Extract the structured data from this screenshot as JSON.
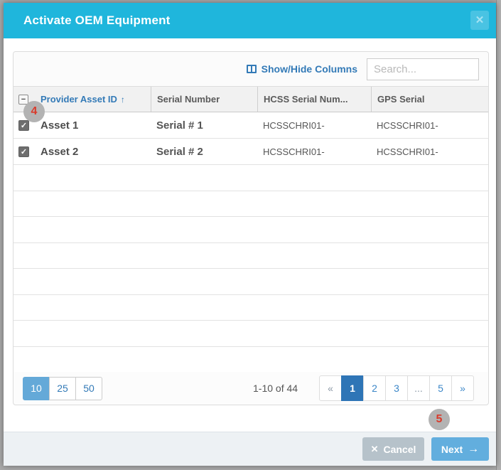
{
  "modal": {
    "title": "Activate OEM Equipment",
    "close_icon": "✕"
  },
  "toolbar": {
    "show_hide_label": "Show/Hide Columns",
    "search_placeholder": "Search..."
  },
  "table": {
    "columns": [
      {
        "label": "Provider Asset ID",
        "sort_arrow": "↑"
      },
      {
        "label": "Serial Number"
      },
      {
        "label": "HCSS Serial Num..."
      },
      {
        "label": "GPS Serial"
      }
    ],
    "header_checkbox_glyph": "−",
    "row_check_glyph": "✓",
    "rows": [
      {
        "asset": "Asset 1",
        "serial": "Serial # 1",
        "hcss_serial": "HCSSCHRI01-",
        "gps_serial": "HCSSCHRI01-"
      },
      {
        "asset": "Asset 2",
        "serial": "Serial # 2",
        "hcss_serial": "HCSSCHRI01-",
        "gps_serial": "HCSSCHRI01-"
      }
    ],
    "empty_row_count": 8
  },
  "pagination": {
    "page_sizes": [
      "10",
      "25",
      "50"
    ],
    "active_size": "10",
    "range_label": "1-10 of 44",
    "pages": [
      "«",
      "1",
      "2",
      "3",
      "...",
      "5",
      "»"
    ],
    "active_page": "1"
  },
  "footer": {
    "cancel_label": "Cancel",
    "cancel_icon": "✕",
    "next_label": "Next",
    "next_icon": "→"
  },
  "annotations": {
    "badge4": "4",
    "badge5": "5"
  },
  "colors": {
    "header": "#1fb6dc",
    "accent_blue": "#337ab7",
    "active_size_bg": "#64a9d8",
    "active_page_bg": "#2e75b6",
    "cancel_bg": "#b6c2ca",
    "next_bg": "#62aede",
    "badge_bg": "#b3b3b3",
    "badge_text": "#d93a2b"
  }
}
